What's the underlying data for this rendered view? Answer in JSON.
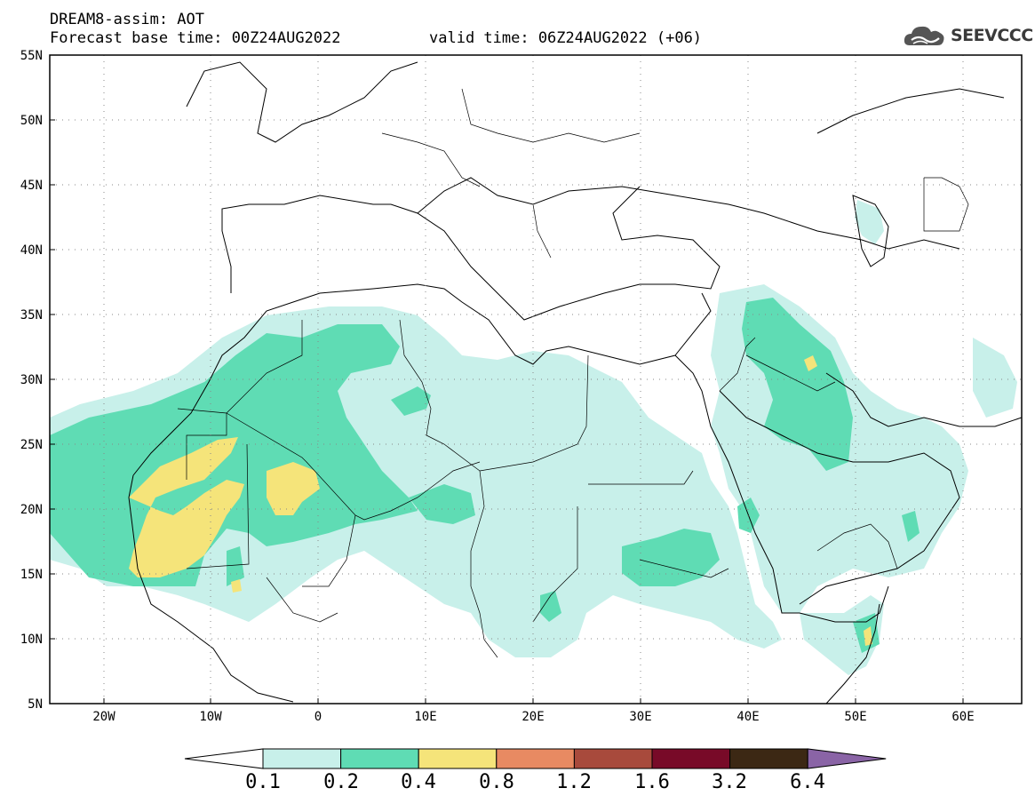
{
  "header": {
    "title": "DREAM8-assim: AOT",
    "base_time": "Forecast base time: 00Z24AUG2022",
    "valid_time": "valid time: 06Z24AUG2022 (+06)"
  },
  "logo": {
    "text": "SEEVCCC",
    "icon": "cloud-icon"
  },
  "map": {
    "lat_labels": [
      "55N",
      "50N",
      "45N",
      "40N",
      "35N",
      "30N",
      "25N",
      "20N",
      "15N",
      "10N",
      "5N"
    ],
    "lon_labels": [
      "20W",
      "10W",
      "0",
      "10E",
      "20E",
      "30E",
      "40E",
      "50E",
      "60E"
    ]
  },
  "colorbar": {
    "labels": [
      "0.1",
      "0.2",
      "0.4",
      "0.8",
      "1.2",
      "1.6",
      "3.2",
      "6.4"
    ],
    "colors": [
      "#ffffff",
      "#c8f0ea",
      "#5fdcb4",
      "#f5e47a",
      "#e88a62",
      "#a84a3c",
      "#780a28",
      "#3c2814",
      "#8a64a6"
    ]
  }
}
